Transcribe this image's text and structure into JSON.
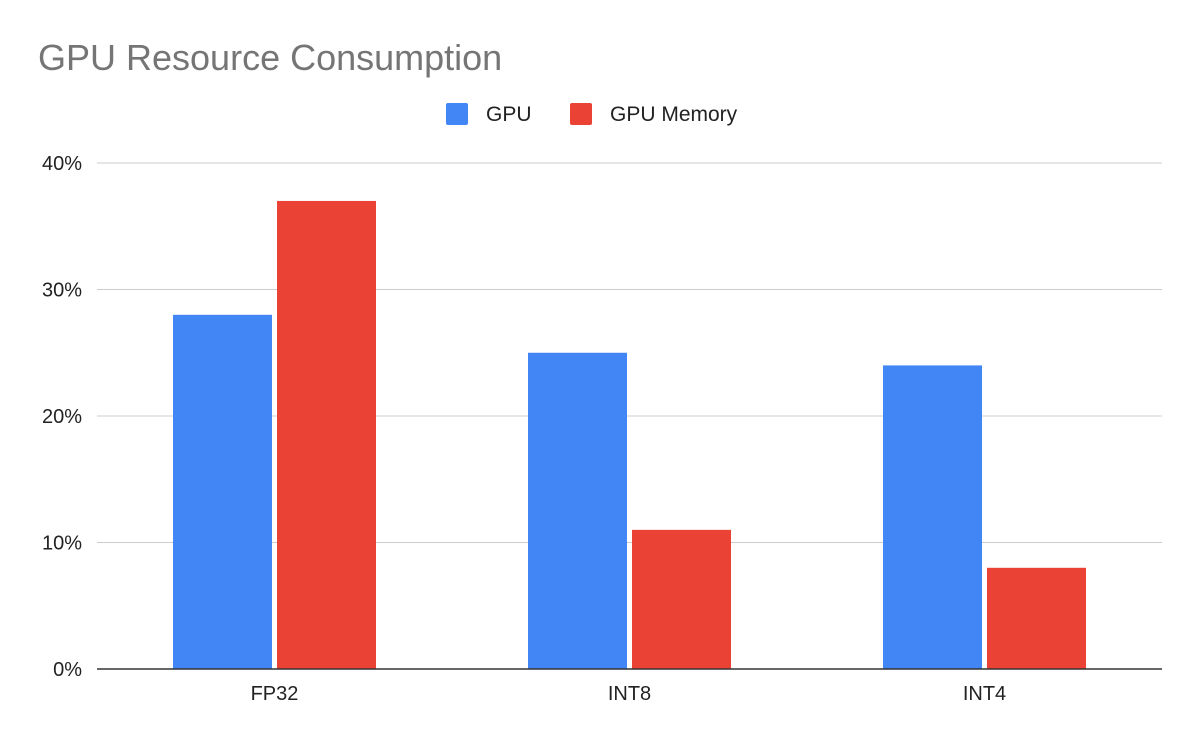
{
  "chart_data": {
    "type": "bar",
    "title": "GPU Resource Consumption",
    "xlabel": "",
    "ylabel": "",
    "categories": [
      "FP32",
      "INT8",
      "INT4"
    ],
    "series": [
      {
        "name": "GPU",
        "values": [
          28,
          25,
          24
        ],
        "color": "#4285F4"
      },
      {
        "name": "GPU Memory",
        "values": [
          37,
          11,
          8
        ],
        "color": "#EA4335"
      }
    ],
    "ylim": [
      0,
      40
    ],
    "yticks": [
      0,
      10,
      20,
      30,
      40
    ],
    "ytick_labels": [
      "0%",
      "10%",
      "20%",
      "30%",
      "40%"
    ],
    "grid": true,
    "legend_position": "top"
  }
}
